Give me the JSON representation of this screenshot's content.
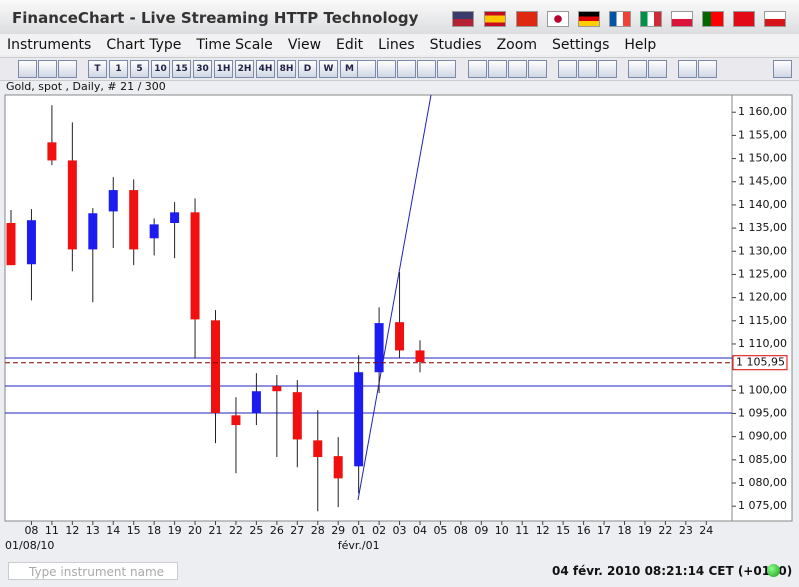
{
  "window": {
    "title": "FinanceChart - Live Streaming HTTP Technology"
  },
  "menu": [
    "Instruments",
    "Chart Type",
    "Time Scale",
    "View",
    "Edit",
    "Lines",
    "Studies",
    "Zoom",
    "Settings",
    "Help"
  ],
  "toolbar": {
    "timeframes": [
      "T",
      "1",
      "5",
      "10",
      "15",
      "30",
      "1H",
      "2H",
      "4H",
      "8H",
      "D",
      "W",
      "M"
    ]
  },
  "chart_info": "Gold, spot , Daily, # 21 / 300",
  "chart_data": {
    "type": "candlestick",
    "categories": [
      null,
      "08",
      "11",
      "12",
      "13",
      "14",
      "15",
      "18",
      "19",
      "20",
      "21",
      "22",
      "25",
      "26",
      "27",
      "28",
      "29",
      "01",
      "02",
      "03",
      "04",
      "05",
      "08",
      "09",
      "10",
      "11",
      "12",
      "15",
      "16",
      "17",
      "18",
      "19",
      "22",
      "23",
      "24"
    ],
    "date_labels": [
      "01/08/10",
      "févr./01"
    ],
    "open": [
      1136.1,
      1127.2,
      1153.5,
      1149.6,
      1130.4,
      1138.6,
      1143.2,
      1132.8,
      1136.1,
      1138.4,
      1115.1,
      1094.6,
      1095.1,
      1100.9,
      1099.6,
      1089.2,
      1085.8,
      1083.6,
      1103.9,
      1114.7,
      1108.6,
      null,
      null,
      null,
      null,
      null,
      null,
      null,
      null,
      null,
      null,
      null,
      null,
      null,
      null
    ],
    "high": [
      1138.9,
      1139.1,
      1161.5,
      1157.8,
      1139.3,
      1146.0,
      1145.5,
      1137.1,
      1140.6,
      1141.4,
      1117.3,
      1098.5,
      1103.7,
      1103.3,
      1102.2,
      1095.7,
      1089.9,
      1107.6,
      1117.9,
      1125.5,
      1110.8,
      null,
      null,
      null,
      null,
      null,
      null,
      null,
      null,
      null,
      null,
      null,
      null,
      null,
      null
    ],
    "low": [
      1127.0,
      1119.4,
      1148.6,
      1125.7,
      1119.0,
      1130.7,
      1127.0,
      1129.1,
      1128.5,
      1106.9,
      1088.6,
      1082.1,
      1092.5,
      1085.6,
      1083.4,
      1073.9,
      1074.8,
      1077.8,
      1099.4,
      1106.9,
      1103.9,
      null,
      null,
      null,
      null,
      null,
      null,
      null,
      null,
      null,
      null,
      null,
      null,
      null,
      null
    ],
    "close": [
      1127.0,
      1136.7,
      1149.6,
      1130.4,
      1138.2,
      1143.2,
      1130.4,
      1135.8,
      1138.4,
      1115.3,
      1095.1,
      1092.5,
      1099.8,
      1099.8,
      1089.4,
      1085.6,
      1081.0,
      1103.9,
      1114.5,
      1108.6,
      1106.1,
      null,
      null,
      null,
      null,
      null,
      null,
      null,
      null,
      null,
      null,
      null,
      null,
      null,
      null
    ],
    "up_color": "#1c1cf0",
    "down_color": "#f01010",
    "ylim": [
      1071.8,
      1163.5
    ],
    "yticks": [
      {
        "value": 1075,
        "label": "1 075,00"
      },
      {
        "value": 1080,
        "label": "1 080,00"
      },
      {
        "value": 1085,
        "label": "1 085,00"
      },
      {
        "value": 1090,
        "label": "1 090,00"
      },
      {
        "value": 1095,
        "label": "1 095,00"
      },
      {
        "value": 1100,
        "label": "1 100,00"
      },
      {
        "value": 1110,
        "label": "1 110,00"
      },
      {
        "value": 1115,
        "label": "1 115,00"
      },
      {
        "value": 1120,
        "label": "1 120,00"
      },
      {
        "value": 1125,
        "label": "1 125,00"
      },
      {
        "value": 1130,
        "label": "1 130,00"
      },
      {
        "value": 1135,
        "label": "1 135,00"
      },
      {
        "value": 1140,
        "label": "1 140,00"
      },
      {
        "value": 1145,
        "label": "1 145,00"
      },
      {
        "value": 1150,
        "label": "1 150,00"
      },
      {
        "value": 1155,
        "label": "1 155,00"
      },
      {
        "value": 1160,
        "label": "1 160,00"
      }
    ],
    "current_price": {
      "value": 1105.95,
      "label": "1 105,95"
    }
  },
  "search": {
    "placeholder": "Type instrument name"
  },
  "status": "04 févr. 2010 08:21:14 CET (+0100)"
}
